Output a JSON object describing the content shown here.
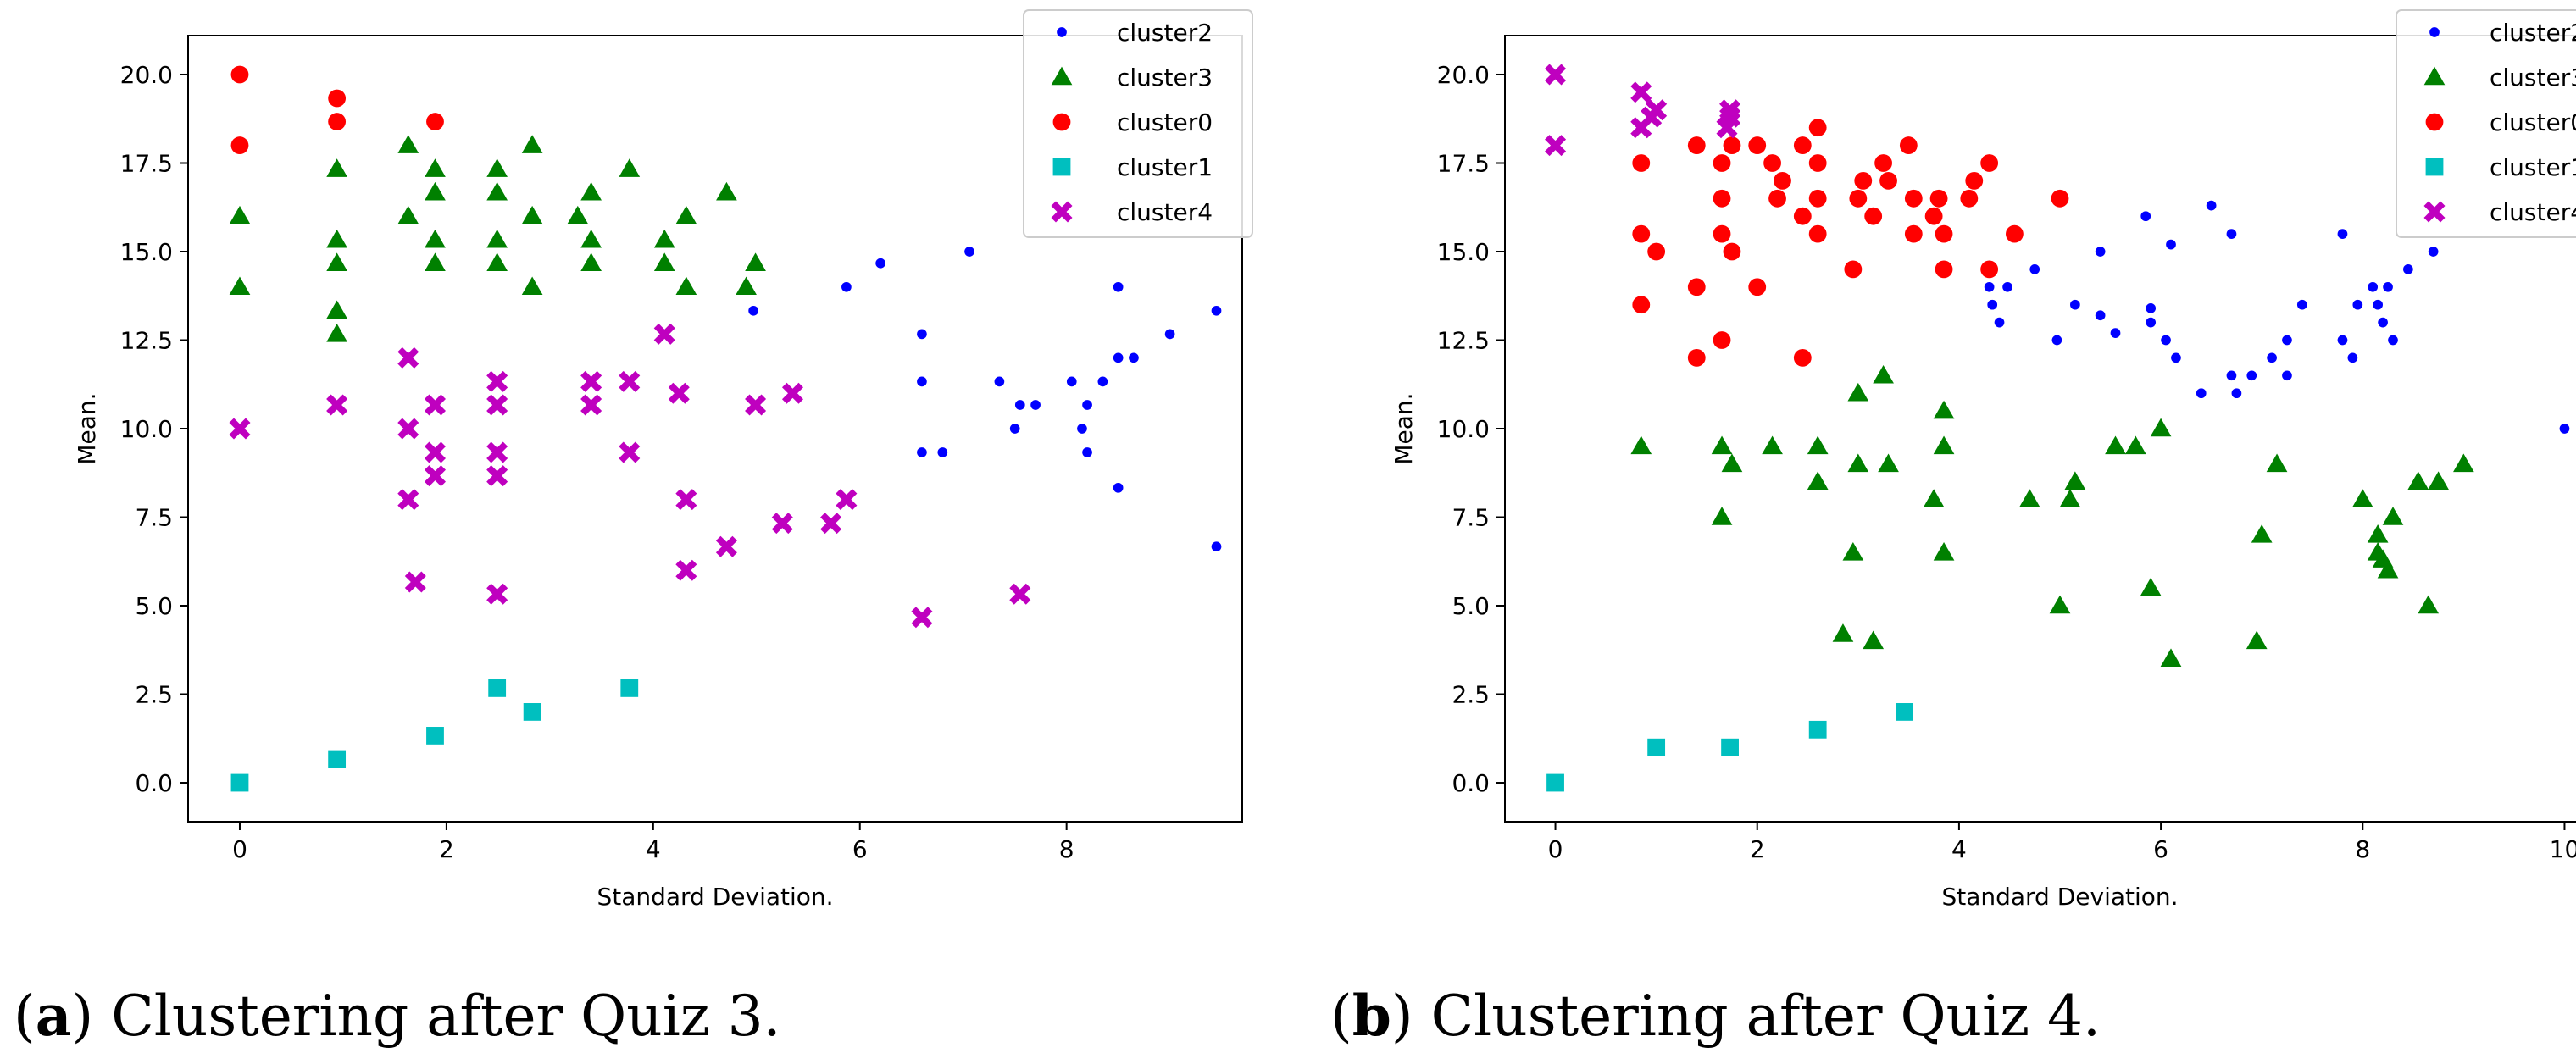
{
  "chart_data": [
    {
      "type": "scatter",
      "xlabel": "Standard Deviation.",
      "ylabel": "Mean.",
      "xlim": [
        -0.5,
        9.7
      ],
      "ylim": [
        -1.1,
        21.1
      ],
      "xticks": [
        "0",
        "2",
        "4",
        "6",
        "8"
      ],
      "yticks": [
        "0.0",
        "2.5",
        "5.0",
        "7.5",
        "10.0",
        "12.5",
        "15.0",
        "17.5",
        "20.0"
      ],
      "legend": "top-right",
      "caption": {
        "label": "a",
        "text": ") Clustering after Quiz 3."
      },
      "series": [
        {
          "name": "cluster2",
          "color": "#0000ff",
          "marker": "dot",
          "points": [
            [
              4.97,
              13.33
            ],
            [
              5.87,
              14.0
            ],
            [
              6.2,
              14.67
            ],
            [
              7.06,
              15.0
            ],
            [
              6.6,
              12.67
            ],
            [
              6.6,
              11.33
            ],
            [
              6.6,
              9.33
            ],
            [
              6.8,
              9.33
            ],
            [
              7.35,
              11.33
            ],
            [
              7.5,
              10.0
            ],
            [
              7.55,
              10.67
            ],
            [
              7.7,
              10.67
            ],
            [
              8.05,
              11.33
            ],
            [
              8.15,
              10.0
            ],
            [
              8.2,
              10.67
            ],
            [
              8.2,
              9.33
            ],
            [
              8.35,
              11.33
            ],
            [
              8.5,
              14.0
            ],
            [
              8.5,
              12.0
            ],
            [
              8.65,
              12.0
            ],
            [
              8.5,
              8.33
            ],
            [
              9.0,
              12.67
            ],
            [
              9.45,
              13.33
            ],
            [
              9.45,
              6.67
            ]
          ]
        },
        {
          "name": "cluster3",
          "color": "#008000",
          "marker": "triangle",
          "points": [
            [
              0,
              16.0
            ],
            [
              0,
              14.0
            ],
            [
              0.94,
              17.33
            ],
            [
              0.94,
              15.33
            ],
            [
              0.94,
              14.67
            ],
            [
              0.94,
              13.33
            ],
            [
              0.94,
              12.67
            ],
            [
              1.63,
              18.0
            ],
            [
              1.63,
              16.0
            ],
            [
              1.89,
              17.33
            ],
            [
              1.89,
              16.67
            ],
            [
              1.89,
              15.33
            ],
            [
              1.89,
              14.67
            ],
            [
              2.49,
              17.33
            ],
            [
              2.49,
              16.67
            ],
            [
              2.49,
              15.33
            ],
            [
              2.49,
              14.67
            ],
            [
              2.83,
              18.0
            ],
            [
              2.83,
              16.0
            ],
            [
              2.83,
              14.0
            ],
            [
              3.27,
              16.0
            ],
            [
              3.4,
              16.67
            ],
            [
              3.4,
              15.33
            ],
            [
              3.4,
              14.67
            ],
            [
              3.77,
              17.33
            ],
            [
              4.11,
              15.33
            ],
            [
              4.11,
              14.67
            ],
            [
              4.32,
              16.0
            ],
            [
              4.32,
              14.0
            ],
            [
              4.71,
              16.67
            ],
            [
              4.9,
              14.0
            ],
            [
              4.99,
              14.67
            ]
          ]
        },
        {
          "name": "cluster0",
          "color": "#ff0000",
          "marker": "circle",
          "points": [
            [
              0,
              20.0
            ],
            [
              0,
              18.0
            ],
            [
              0.94,
              19.33
            ],
            [
              0.94,
              18.67
            ],
            [
              1.89,
              18.67
            ]
          ]
        },
        {
          "name": "cluster1",
          "color": "#00bfbf",
          "marker": "square",
          "points": [
            [
              0,
              0.0
            ],
            [
              0.94,
              0.67
            ],
            [
              1.89,
              1.33
            ],
            [
              2.49,
              2.67
            ],
            [
              2.83,
              2.0
            ],
            [
              3.77,
              2.67
            ]
          ]
        },
        {
          "name": "cluster4",
          "color": "#bf00bf",
          "marker": "x",
          "points": [
            [
              0,
              10.0
            ],
            [
              0.94,
              10.67
            ],
            [
              1.63,
              12.0
            ],
            [
              1.63,
              10.0
            ],
            [
              1.63,
              8.0
            ],
            [
              1.7,
              5.67
            ],
            [
              1.89,
              10.67
            ],
            [
              1.89,
              9.33
            ],
            [
              1.89,
              8.67
            ],
            [
              2.49,
              11.33
            ],
            [
              2.49,
              10.67
            ],
            [
              2.49,
              9.33
            ],
            [
              2.49,
              8.67
            ],
            [
              2.49,
              5.33
            ],
            [
              3.4,
              11.33
            ],
            [
              3.4,
              10.67
            ],
            [
              3.77,
              11.33
            ],
            [
              3.77,
              9.33
            ],
            [
              4.11,
              12.67
            ],
            [
              4.25,
              11.0
            ],
            [
              4.32,
              8.0
            ],
            [
              4.32,
              6.0
            ],
            [
              4.71,
              6.67
            ],
            [
              4.99,
              10.67
            ],
            [
              5.25,
              7.33
            ],
            [
              5.35,
              11.0
            ],
            [
              5.72,
              7.33
            ],
            [
              5.87,
              8.0
            ],
            [
              6.6,
              4.67
            ],
            [
              7.55,
              5.33
            ]
          ]
        }
      ]
    },
    {
      "type": "scatter",
      "xlabel": "Standard Deviation.",
      "ylabel": "Mean.",
      "xlim": [
        -0.5,
        10.5
      ],
      "ylim": [
        -1.1,
        21.1
      ],
      "xticks": [
        "0",
        "2",
        "4",
        "6",
        "8",
        "10"
      ],
      "yticks": [
        "0.0",
        "2.5",
        "5.0",
        "7.5",
        "10.0",
        "12.5",
        "15.0",
        "17.5",
        "20.0"
      ],
      "legend": "top-right",
      "caption": {
        "label": "b",
        "text": ") Clustering after Quiz 4."
      },
      "series": [
        {
          "name": "cluster2",
          "color": "#0000ff",
          "marker": "dot",
          "points": [
            [
              4.3,
              14.0
            ],
            [
              4.33,
              13.5
            ],
            [
              4.4,
              13.0
            ],
            [
              4.48,
              14.0
            ],
            [
              4.75,
              14.5
            ],
            [
              4.97,
              12.5
            ],
            [
              5.15,
              13.5
            ],
            [
              5.4,
              15.0
            ],
            [
              5.4,
              13.2
            ],
            [
              5.55,
              12.7
            ],
            [
              5.9,
              13.4
            ],
            [
              5.9,
              13.0
            ],
            [
              5.85,
              16.0
            ],
            [
              6.05,
              12.5
            ],
            [
              6.1,
              15.2
            ],
            [
              6.15,
              12.0
            ],
            [
              6.4,
              11.0
            ],
            [
              6.5,
              16.3
            ],
            [
              6.7,
              15.5
            ],
            [
              6.7,
              11.5
            ],
            [
              6.75,
              11.0
            ],
            [
              6.9,
              11.5
            ],
            [
              7.1,
              12.0
            ],
            [
              7.25,
              11.5
            ],
            [
              7.25,
              12.5
            ],
            [
              7.4,
              13.5
            ],
            [
              7.8,
              15.5
            ],
            [
              7.8,
              12.5
            ],
            [
              7.9,
              12.0
            ],
            [
              7.95,
              13.5
            ],
            [
              8.1,
              14.0
            ],
            [
              8.15,
              13.5
            ],
            [
              8.2,
              13.0
            ],
            [
              8.25,
              14.0
            ],
            [
              8.3,
              12.5
            ],
            [
              8.45,
              14.5
            ],
            [
              8.7,
              15.0
            ],
            [
              10.0,
              10.0
            ]
          ]
        },
        {
          "name": "cluster3",
          "color": "#008000",
          "marker": "triangle",
          "points": [
            [
              0.85,
              9.5
            ],
            [
              1.65,
              9.5
            ],
            [
              1.65,
              7.5
            ],
            [
              1.75,
              9.0
            ],
            [
              2.15,
              9.5
            ],
            [
              2.6,
              9.5
            ],
            [
              2.6,
              8.5
            ],
            [
              2.95,
              6.5
            ],
            [
              3.0,
              11.0
            ],
            [
              3.0,
              9.0
            ],
            [
              3.25,
              11.5
            ],
            [
              3.3,
              9.0
            ],
            [
              2.85,
              4.2
            ],
            [
              3.15,
              4.0
            ],
            [
              3.75,
              8.0
            ],
            [
              3.85,
              10.5
            ],
            [
              3.85,
              9.5
            ],
            [
              3.85,
              6.5
            ],
            [
              4.7,
              8.0
            ],
            [
              5.0,
              5.0
            ],
            [
              5.1,
              8.0
            ],
            [
              5.15,
              8.5
            ],
            [
              5.55,
              9.5
            ],
            [
              5.75,
              9.5
            ],
            [
              5.9,
              5.5
            ],
            [
              6.0,
              10.0
            ],
            [
              6.1,
              3.5
            ],
            [
              6.95,
              4.0
            ],
            [
              7.0,
              7.0
            ],
            [
              7.15,
              9.0
            ],
            [
              8.0,
              8.0
            ],
            [
              8.15,
              7.0
            ],
            [
              8.15,
              6.5
            ],
            [
              8.2,
              6.3
            ],
            [
              8.25,
              6.0
            ],
            [
              8.3,
              7.5
            ],
            [
              8.55,
              8.5
            ],
            [
              8.65,
              5.0
            ],
            [
              8.75,
              8.5
            ],
            [
              9.0,
              9.0
            ]
          ]
        },
        {
          "name": "cluster0",
          "color": "#ff0000",
          "marker": "circle",
          "points": [
            [
              0.85,
              17.5
            ],
            [
              0.85,
              15.5
            ],
            [
              0.85,
              13.5
            ],
            [
              1.0,
              15.0
            ],
            [
              1.4,
              18.0
            ],
            [
              1.4,
              14.0
            ],
            [
              1.4,
              12.0
            ],
            [
              1.65,
              17.5
            ],
            [
              1.65,
              16.5
            ],
            [
              1.65,
              15.5
            ],
            [
              1.65,
              12.5
            ],
            [
              1.75,
              15.0
            ],
            [
              1.75,
              18.0
            ],
            [
              2.0,
              18.0
            ],
            [
              2.0,
              14.0
            ],
            [
              2.15,
              17.5
            ],
            [
              2.2,
              16.5
            ],
            [
              2.25,
              17.0
            ],
            [
              2.45,
              18.0
            ],
            [
              2.45,
              16.0
            ],
            [
              2.45,
              12.0
            ],
            [
              2.6,
              18.5
            ],
            [
              2.6,
              17.5
            ],
            [
              2.6,
              16.5
            ],
            [
              2.6,
              15.5
            ],
            [
              2.95,
              14.5
            ],
            [
              3.0,
              16.5
            ],
            [
              3.05,
              17.0
            ],
            [
              3.15,
              16.0
            ],
            [
              3.25,
              17.5
            ],
            [
              3.3,
              17.0
            ],
            [
              3.5,
              18.0
            ],
            [
              3.55,
              16.5
            ],
            [
              3.55,
              15.5
            ],
            [
              3.75,
              16.0
            ],
            [
              3.8,
              16.5
            ],
            [
              3.85,
              15.5
            ],
            [
              3.85,
              14.5
            ],
            [
              4.1,
              16.5
            ],
            [
              4.15,
              17.0
            ],
            [
              4.3,
              17.5
            ],
            [
              4.3,
              14.5
            ],
            [
              4.55,
              15.5
            ],
            [
              5.0,
              16.5
            ]
          ]
        },
        {
          "name": "cluster1",
          "color": "#00bfbf",
          "marker": "square",
          "points": [
            [
              0,
              0.0
            ],
            [
              1.0,
              1.0
            ],
            [
              1.73,
              1.0
            ],
            [
              2.6,
              1.5
            ],
            [
              3.46,
              2.0
            ]
          ]
        },
        {
          "name": "cluster4",
          "color": "#bf00bf",
          "marker": "x",
          "points": [
            [
              0,
              20.0
            ],
            [
              0,
              18.0
            ],
            [
              0.85,
              19.5
            ],
            [
              0.85,
              18.5
            ],
            [
              0.95,
              18.8
            ],
            [
              1.0,
              19.0
            ],
            [
              1.7,
              18.5
            ],
            [
              1.73,
              18.8
            ],
            [
              1.73,
              19.0
            ]
          ]
        }
      ]
    }
  ]
}
